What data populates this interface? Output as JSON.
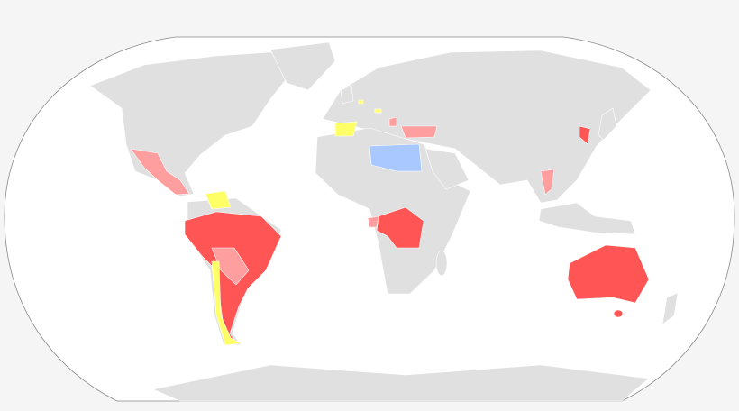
{
  "map": {
    "projection": "world-robinson",
    "colors": {
      "page_background": "#f5f5f5",
      "ocean": "#ffffff",
      "outline": "#888888",
      "land_default": "#e0e0e0",
      "category_red": "#ff5555",
      "category_pink": "#ff9e9e",
      "category_yellow": "#ffff66",
      "category_blue": "#a8c8ff"
    }
  }
}
